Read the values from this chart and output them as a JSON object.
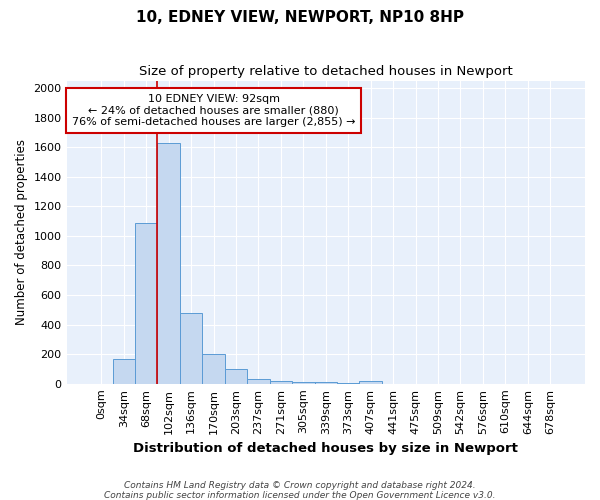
{
  "title": "10, EDNEY VIEW, NEWPORT, NP10 8HP",
  "subtitle": "Size of property relative to detached houses in Newport",
  "xlabel": "Distribution of detached houses by size in Newport",
  "ylabel": "Number of detached properties",
  "categories": [
    "0sqm",
    "34sqm",
    "68sqm",
    "102sqm",
    "136sqm",
    "170sqm",
    "203sqm",
    "237sqm",
    "271sqm",
    "305sqm",
    "339sqm",
    "373sqm",
    "407sqm",
    "441sqm",
    "475sqm",
    "509sqm",
    "542sqm",
    "576sqm",
    "610sqm",
    "644sqm",
    "678sqm"
  ],
  "bar_heights": [
    0,
    170,
    1090,
    1630,
    480,
    200,
    100,
    35,
    20,
    15,
    10,
    5,
    20,
    0,
    0,
    0,
    0,
    0,
    0,
    0,
    0
  ],
  "bar_color": "#c5d8f0",
  "bar_edge_color": "#5b9bd5",
  "background_color": "#e8f0fb",
  "grid_color": "#ffffff",
  "vline_color": "#cc0000",
  "annotation_text": "10 EDNEY VIEW: 92sqm\n← 24% of detached houses are smaller (880)\n76% of semi-detached houses are larger (2,855) →",
  "annotation_box_facecolor": "#ffffff",
  "annotation_box_edgecolor": "#cc0000",
  "ylim": [
    0,
    2050
  ],
  "yticks": [
    0,
    200,
    400,
    600,
    800,
    1000,
    1200,
    1400,
    1600,
    1800,
    2000
  ],
  "footnote1": "Contains HM Land Registry data © Crown copyright and database right 2024.",
  "footnote2": "Contains public sector information licensed under the Open Government Licence v3.0."
}
